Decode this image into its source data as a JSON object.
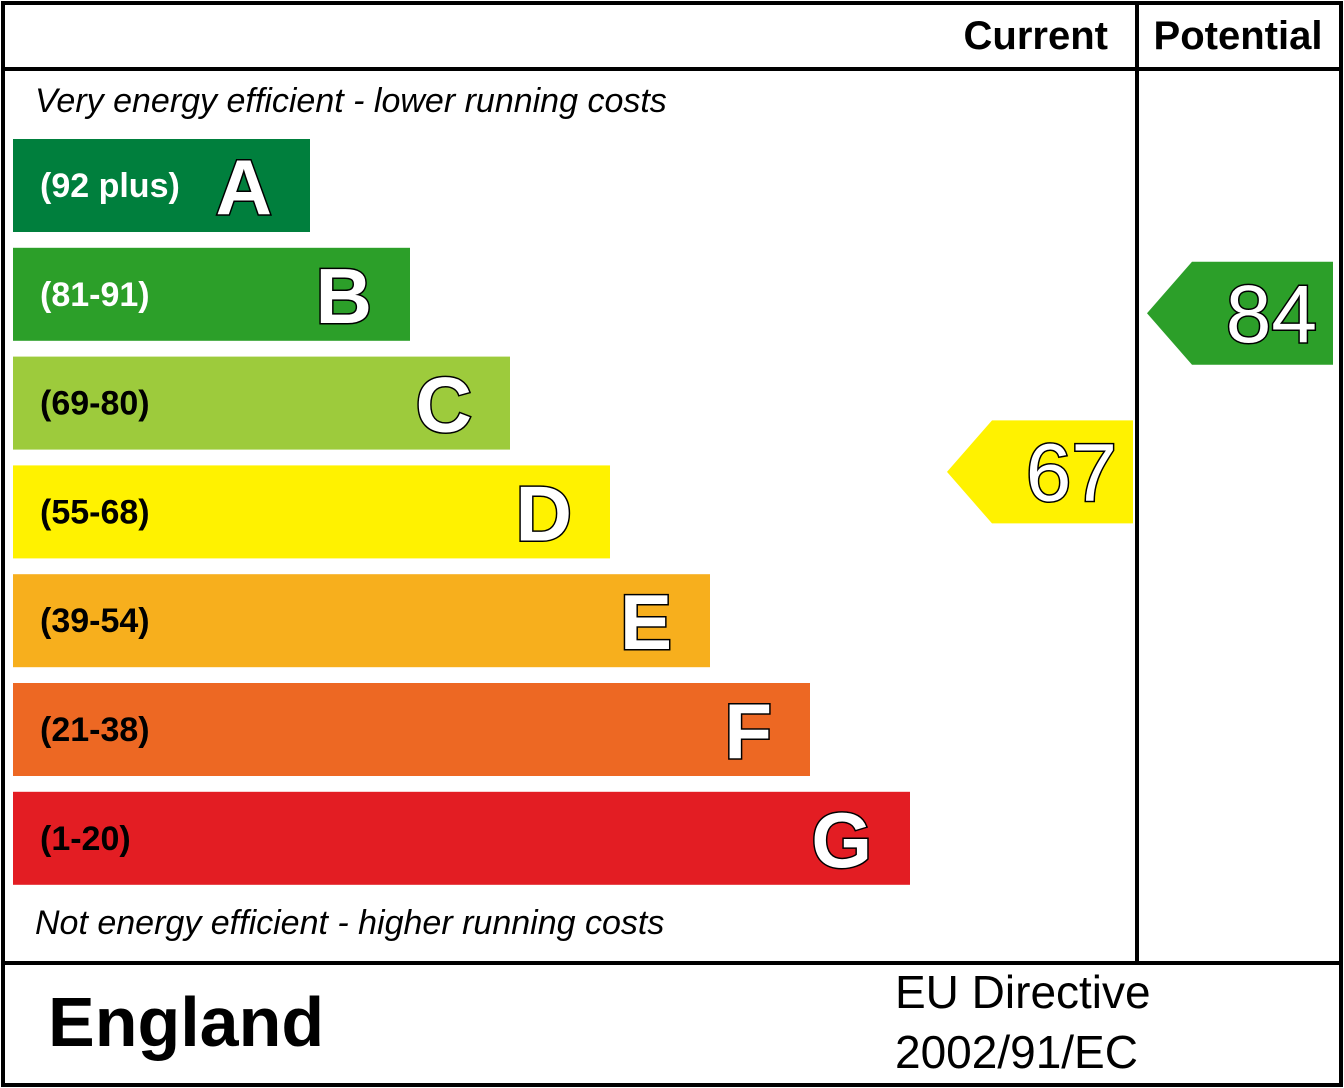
{
  "header": {
    "current_label": "Current",
    "potential_label": "Potential"
  },
  "notes": {
    "top": "Very energy efficient - lower running costs",
    "bottom": "Not energy efficient - higher running costs"
  },
  "footer": {
    "country": "England",
    "directive_line1": "EU Directive",
    "directive_line2": "2002/91/EC"
  },
  "chart_data": {
    "type": "bar",
    "bands": [
      {
        "letter": "A",
        "range": "(92 plus)",
        "color": "#007f3d",
        "text_color": "#ffffff"
      },
      {
        "letter": "B",
        "range": "(81-91)",
        "color": "#2c9f29",
        "text_color": "#ffffff"
      },
      {
        "letter": "C",
        "range": "(69-80)",
        "color": "#9dcb3c",
        "text_color": "#000000"
      },
      {
        "letter": "D",
        "range": "(55-68)",
        "color": "#fff200",
        "text_color": "#000000"
      },
      {
        "letter": "E",
        "range": "(39-54)",
        "color": "#f7af1d",
        "text_color": "#000000"
      },
      {
        "letter": "F",
        "range": "(21-38)",
        "color": "#ed6823",
        "text_color": "#000000"
      },
      {
        "letter": "G",
        "range": "(1-20)",
        "color": "#e31d23",
        "text_color": "#000000"
      }
    ],
    "current": {
      "value": "67",
      "band": "D",
      "color": "#fff200"
    },
    "potential": {
      "value": "84",
      "band": "B",
      "color": "#2c9f29"
    }
  }
}
